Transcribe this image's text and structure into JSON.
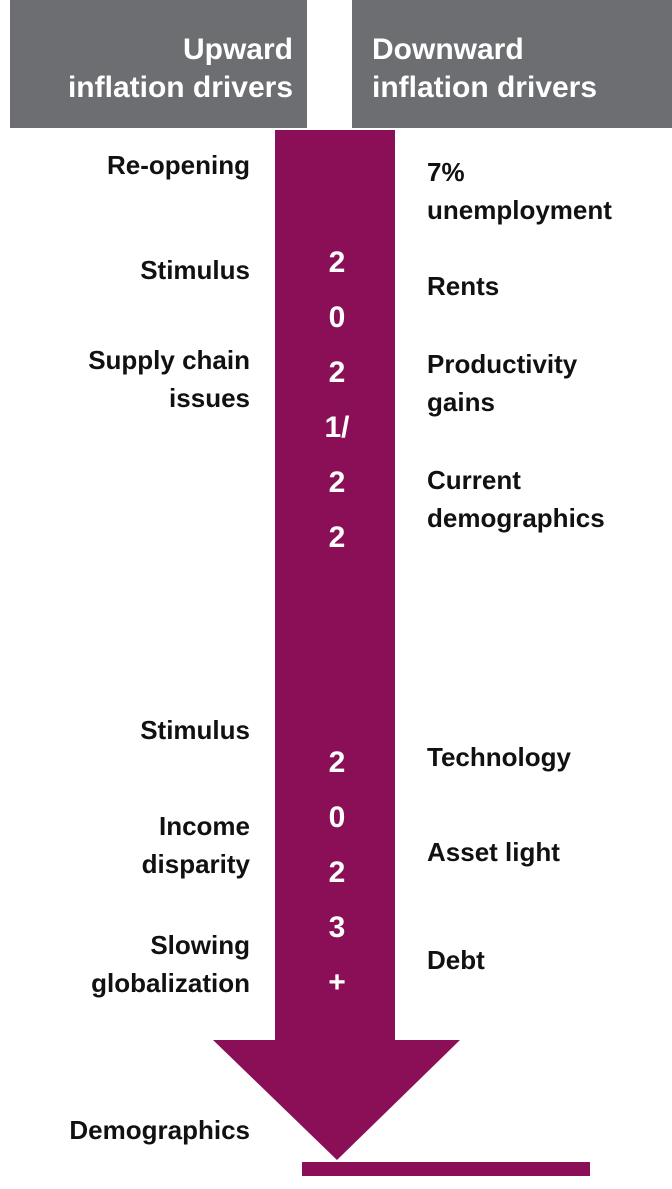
{
  "header": {
    "upward": [
      "Upward",
      "inflation drivers"
    ],
    "downward": [
      "Downward",
      "inflation drivers"
    ]
  },
  "upward_drivers": [
    [
      "Re-opening"
    ],
    [
      "Stimulus"
    ],
    [
      "Supply chain",
      "issues"
    ],
    [
      "Stimulus"
    ],
    [
      "Income",
      "disparity"
    ],
    [
      "Slowing",
      "globalization"
    ],
    [
      "Demographics"
    ]
  ],
  "downward_drivers": [
    [
      "7%",
      "unemployment"
    ],
    [
      "Rents"
    ],
    [
      "Productivity",
      "gains"
    ],
    [
      "Current",
      "demographics"
    ],
    [
      "Technology"
    ],
    [
      "Asset light"
    ],
    [
      "Debt"
    ]
  ],
  "periods": [
    "2021/22",
    "2023+"
  ]
}
